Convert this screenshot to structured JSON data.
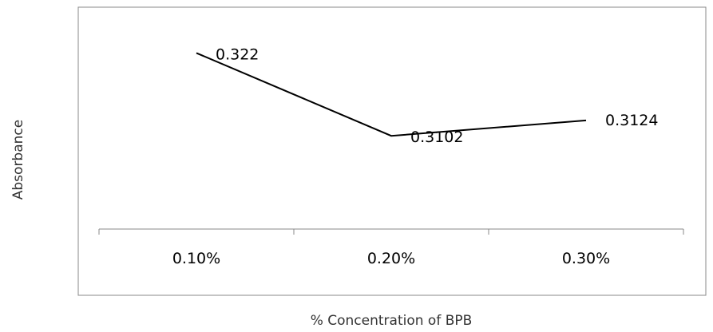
{
  "chart_data": {
    "type": "line",
    "title": "",
    "xlabel": "% Concentration of BPB",
    "ylabel": "Absorbance",
    "categories": [
      "0.10%",
      "0.20%",
      "0.30%"
    ],
    "series": [
      {
        "values": [
          0.322,
          0.3102,
          0.3124
        ],
        "labels": [
          "0.322",
          "0.3102",
          "0.3124"
        ],
        "color": "#000000"
      }
    ],
    "ylim": [
      0.3,
      0.325
    ],
    "grid": false,
    "legend": "none"
  }
}
